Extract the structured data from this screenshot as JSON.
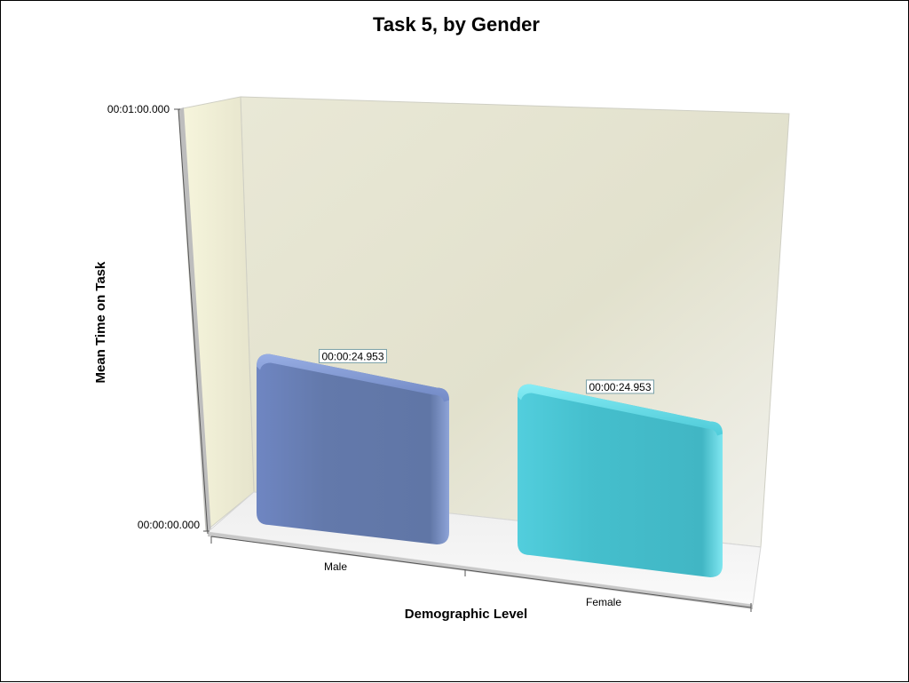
{
  "chart_data": {
    "type": "bar",
    "title": "Task 5, by Gender",
    "xlabel": "Demographic Level",
    "ylabel": "Mean Time on Task",
    "categories": [
      "Male",
      "Female"
    ],
    "values": [
      24.953,
      24.953
    ],
    "data_labels": [
      "00:00:24.953",
      "00:00:24.953"
    ],
    "ylim": [
      0,
      60
    ],
    "y_ticks": [
      {
        "value": 0,
        "label": "00:00:00.000"
      },
      {
        "value": 60,
        "label": "00:01:00.000"
      }
    ],
    "colors": [
      "#6a7fb5",
      "#4cc5d3"
    ],
    "grid": false,
    "legend": "none",
    "style": "3d"
  }
}
